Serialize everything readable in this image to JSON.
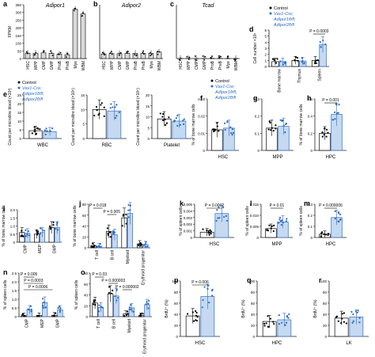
{
  "colors": {
    "control": "#9a9a9a",
    "mutant": "#2b6cc4",
    "mutant_fill": "#c5d9f1",
    "axis": "#222222"
  },
  "legend": {
    "control": "Control",
    "mutant_l1": "Vav1-Cre;",
    "mutant_l2": "Adipor1fl/fl;",
    "mutant_l3": "Adipor2fl/fl"
  },
  "panels": [
    {
      "id": "a",
      "letter": "a",
      "title": "Adipor1",
      "ylabel": "FPKM",
      "yticks": [
        "0",
        "50",
        "100",
        "150",
        "200",
        "250",
        "300",
        "350"
      ],
      "cats": [
        "HSC",
        "MPP",
        "CMP",
        "GMP",
        "ProB",
        "PreB",
        "Mye",
        "WBM"
      ]
    },
    {
      "id": "b",
      "letter": "b",
      "title": "Adipor2",
      "ylabel": "",
      "yticks": [],
      "cats": [
        "HSC",
        "MPP",
        "CMP",
        "GMP",
        "ProB",
        "PreB",
        "Mye",
        "WBM"
      ]
    },
    {
      "id": "c",
      "letter": "c",
      "title": "Tcad",
      "ylabel": "",
      "yticks": [],
      "cats": [
        "HSC",
        "MPP",
        "CMP",
        "GMP",
        "ProB",
        "PreB",
        "Mye",
        "WBM"
      ]
    },
    {
      "id": "d",
      "letter": "d",
      "title": "",
      "ylabel": "Cell number ×10⁸",
      "yticks": [
        "0",
        "1",
        "2",
        "3",
        "4",
        "5",
        "6"
      ],
      "cats": [
        "Bone marrow",
        "Thymus",
        "Spleen"
      ],
      "pval": "P = 0.0003"
    },
    {
      "id": "e1",
      "letter": "e",
      "title": "",
      "ylabel": "Count per microlitre blood (×10³)",
      "yticks": [
        "0",
        "5",
        "10",
        "15",
        "20",
        "25"
      ],
      "cats": [
        "WBC"
      ]
    },
    {
      "id": "e2",
      "letter": "",
      "title": "",
      "ylabel": "Count per microlitre blood (×10⁶)",
      "yticks": [
        "0",
        "5",
        "10",
        "15"
      ],
      "cats": [
        "RBC"
      ]
    },
    {
      "id": "e3",
      "letter": "",
      "title": "",
      "ylabel": "Count per microlitre blood (×10⁵)",
      "yticks": [
        "0",
        "5",
        "10",
        "15",
        "20"
      ],
      "cats": [
        "Platelet"
      ]
    },
    {
      "id": "f",
      "letter": "f",
      "title": "",
      "ylabel": "% of bone marrow cells",
      "yticks": [
        "0",
        "0.01",
        "0.02",
        "0.03"
      ],
      "cats": [
        "HSC"
      ]
    },
    {
      "id": "g",
      "letter": "g",
      "title": "",
      "ylabel": "",
      "yticks": [
        "0",
        "0.1",
        "0.2",
        "0.3"
      ],
      "cats": [
        "MPP"
      ]
    },
    {
      "id": "h",
      "letter": "h",
      "title": "",
      "ylabel": "% of bone marrow cells",
      "yticks": [
        "0",
        "0.2",
        "0.4",
        "0.6"
      ],
      "cats": [
        "HPC"
      ],
      "pval": "P = 0.001"
    },
    {
      "id": "i",
      "letter": "i",
      "title": "",
      "ylabel": "% of bone marrow cells",
      "yticks": [
        "0",
        "0.5",
        "1.0",
        "1.5",
        "2.0"
      ],
      "cats": [
        "CMP",
        "MEP",
        "GMP"
      ]
    },
    {
      "id": "j",
      "letter": "j",
      "title": "",
      "ylabel": "% of bone marrow cells",
      "yticks": [
        "0",
        "20",
        "40",
        "60",
        "80"
      ],
      "cats": [
        "T cell",
        "B cell",
        "Myeloid",
        "Erythroid progenitor"
      ],
      "pval": "P = 0.018",
      "pval2": "P = 0.005"
    },
    {
      "id": "k",
      "letter": "k",
      "title": "",
      "ylabel": "% of spleen cells",
      "yticks": [
        "0",
        "0.001",
        "0.002",
        "0.003",
        "0.004",
        "0.005"
      ],
      "cats": [
        "HSC"
      ],
      "pval": "P = 0.0002"
    },
    {
      "id": "l",
      "letter": "l",
      "title": "",
      "ylabel": "% of spleen cells",
      "yticks": [
        "0",
        "0.005",
        "0.010",
        "0.015"
      ],
      "cats": [
        "MPP"
      ],
      "pval": "P = 0.01"
    },
    {
      "id": "m",
      "letter": "m",
      "title": "",
      "ylabel": "% of spleen cells",
      "yticks": [
        "0",
        "0.1",
        "0.2",
        "0.3"
      ],
      "cats": [
        "HPC"
      ],
      "pval": "P = 0.000006"
    },
    {
      "id": "n",
      "letter": "n",
      "title": "",
      "ylabel": "% of spleen cells",
      "yticks": [
        "0",
        "0.5",
        "1.0",
        "1.5",
        "2.0",
        "2.5"
      ],
      "cats": [
        "CMP",
        "MEP",
        "GMP"
      ],
      "pval": "P = 0.005",
      "pval2": "P = 0.0003",
      "pval3": "P = 0.0006"
    },
    {
      "id": "o",
      "letter": "o",
      "title": "",
      "ylabel": "% of spleen cells",
      "yticks": [
        "0",
        "20",
        "40",
        "60",
        "80"
      ],
      "cats": [
        "T cell",
        "B cell",
        "Myeloid",
        "Erythroid progenitor"
      ],
      "pval": "P = 0.03",
      "pval2": "P = 0.000003",
      "pval3": "P = 0.000002"
    },
    {
      "id": "p",
      "letter": "p",
      "title": "",
      "ylabel": "BrdU⁺ (%)",
      "yticks": [
        "0",
        "20",
        "40",
        "60",
        "80",
        "100"
      ],
      "cats": [
        "HSC"
      ],
      "pval": "P = 0.006"
    },
    {
      "id": "q",
      "letter": "q",
      "title": "",
      "ylabel": "BrdU⁺ (%)",
      "yticks": [
        "0",
        "20",
        "40",
        "60",
        "80",
        "100"
      ],
      "cats": [
        "HPC"
      ]
    },
    {
      "id": "r",
      "letter": "r",
      "title": "",
      "ylabel": "BrdU⁺ (%)",
      "yticks": [
        "0",
        "20",
        "40",
        "60",
        "80",
        "100"
      ],
      "cats": [
        "LK"
      ]
    }
  ],
  "chart_data": [
    {
      "type": "bar",
      "panel": "a",
      "categories": [
        "HSC",
        "MPP",
        "CMP",
        "GMP",
        "ProB",
        "PreB",
        "Mye",
        "WBM"
      ],
      "values": [
        35,
        35,
        37,
        35,
        28,
        25,
        320,
        290
      ],
      "ylim": [
        0,
        350
      ]
    },
    {
      "type": "bar",
      "panel": "b",
      "categories": [
        "HSC",
        "MPP",
        "CMP",
        "GMP",
        "ProB",
        "PreB",
        "Mye",
        "WBM"
      ],
      "values": [
        30,
        33,
        32,
        34,
        34,
        34,
        34,
        42
      ],
      "ylim": [
        0,
        350
      ]
    },
    {
      "type": "bar",
      "panel": "c",
      "categories": [
        "HSC",
        "MPP",
        "CMP",
        "GMP",
        "ProB",
        "PreB",
        "Mye",
        "WBM"
      ],
      "values": [
        1,
        1,
        1,
        1,
        1,
        1,
        1,
        1
      ],
      "ylim": [
        0,
        350
      ]
    },
    {
      "type": "bar",
      "panel": "d",
      "categories": [
        "Bone marrow",
        "Thymus",
        "Spleen"
      ],
      "series": [
        {
          "name": "Control",
          "values": [
            0.8,
            1.0,
            1.0
          ]
        },
        {
          "name": "Mutant",
          "values": [
            0.8,
            0.9,
            3.6
          ]
        }
      ],
      "ylim": [
        0,
        6
      ]
    },
    {
      "type": "bar",
      "panel": "e1",
      "categories": [
        "WBC"
      ],
      "series": [
        {
          "name": "Control",
          "values": [
            4.5
          ]
        },
        {
          "name": "Mutant",
          "values": [
            4.0
          ]
        }
      ],
      "ylim": [
        0,
        25
      ]
    },
    {
      "type": "bar",
      "panel": "e2",
      "categories": [
        "RBC"
      ],
      "series": [
        {
          "name": "Control",
          "values": [
            10
          ]
        },
        {
          "name": "Mutant",
          "values": [
            9.5
          ]
        }
      ],
      "ylim": [
        0,
        15
      ]
    },
    {
      "type": "bar",
      "panel": "e3",
      "categories": [
        "Platelet"
      ],
      "series": [
        {
          "name": "Control",
          "values": [
            9
          ]
        },
        {
          "name": "Mutant",
          "values": [
            8
          ]
        }
      ],
      "ylim": [
        0,
        20
      ]
    },
    {
      "type": "bar",
      "panel": "f",
      "categories": [
        "HSC"
      ],
      "series": [
        {
          "name": "Control",
          "values": [
            0.012
          ]
        },
        {
          "name": "Mutant",
          "values": [
            0.013
          ]
        }
      ],
      "ylim": [
        0,
        0.03
      ]
    },
    {
      "type": "bar",
      "panel": "g",
      "categories": [
        "MPP"
      ],
      "series": [
        {
          "name": "Control",
          "values": [
            0.13
          ]
        },
        {
          "name": "Mutant",
          "values": [
            0.14
          ]
        }
      ],
      "ylim": [
        0,
        0.3
      ]
    },
    {
      "type": "bar",
      "panel": "h",
      "categories": [
        "HPC"
      ],
      "series": [
        {
          "name": "Control",
          "values": [
            0.2
          ]
        },
        {
          "name": "Mutant",
          "values": [
            0.42
          ]
        }
      ],
      "ylim": [
        0,
        0.6
      ]
    },
    {
      "type": "bar",
      "panel": "i",
      "categories": [
        "CMP",
        "MEP",
        "GMP"
      ],
      "series": [
        {
          "name": "Control",
          "values": [
            0.6,
            0.5,
            0.9
          ]
        },
        {
          "name": "Mutant",
          "values": [
            0.55,
            0.6,
            0.9
          ]
        }
      ],
      "ylim": [
        0,
        2.0
      ]
    },
    {
      "type": "bar",
      "panel": "j",
      "categories": [
        "T cell",
        "B cell",
        "Myeloid",
        "Erythroid progenitor"
      ],
      "series": [
        {
          "name": "Control",
          "values": [
            4,
            30,
            55,
            7
          ]
        },
        {
          "name": "Mutant",
          "values": [
            3,
            24,
            63,
            6
          ]
        }
      ],
      "ylim": [
        0,
        80
      ]
    },
    {
      "type": "bar",
      "panel": "k",
      "categories": [
        "HSC"
      ],
      "series": [
        {
          "name": "Control",
          "values": [
            0.0008
          ]
        },
        {
          "name": "Mutant",
          "values": [
            0.0036
          ]
        }
      ],
      "ylim": [
        0,
        0.005
      ]
    },
    {
      "type": "bar",
      "panel": "l",
      "categories": [
        "MPP"
      ],
      "series": [
        {
          "name": "Control",
          "values": [
            0.004
          ]
        },
        {
          "name": "Mutant",
          "values": [
            0.007
          ]
        }
      ],
      "ylim": [
        0,
        0.015
      ]
    },
    {
      "type": "bar",
      "panel": "m",
      "categories": [
        "HPC"
      ],
      "series": [
        {
          "name": "Control",
          "values": [
            0.03
          ]
        },
        {
          "name": "Mutant",
          "values": [
            0.18
          ]
        }
      ],
      "ylim": [
        0,
        0.3
      ]
    },
    {
      "type": "bar",
      "panel": "n",
      "categories": [
        "CMP",
        "MEP",
        "GMP"
      ],
      "series": [
        {
          "name": "Control",
          "values": [
            0.05,
            0.06,
            0.08
          ]
        },
        {
          "name": "Mutant",
          "values": [
            0.4,
            0.8,
            0.4
          ]
        }
      ],
      "ylim": [
        0,
        2.5
      ]
    },
    {
      "type": "bar",
      "panel": "o",
      "categories": [
        "T cell",
        "B cell",
        "Myeloid",
        "Erythroid progenitor"
      ],
      "series": [
        {
          "name": "Control",
          "values": [
            25,
            42,
            5,
            2
          ]
        },
        {
          "name": "Mutant",
          "values": [
            17,
            38,
            16,
            22
          ]
        }
      ],
      "ylim": [
        0,
        80
      ]
    },
    {
      "type": "bar",
      "panel": "p",
      "categories": [
        "HSC"
      ],
      "series": [
        {
          "name": "Control",
          "values": [
            37
          ]
        },
        {
          "name": "Mutant",
          "values": [
            72
          ]
        }
      ],
      "ylim": [
        0,
        100
      ]
    },
    {
      "type": "bar",
      "panel": "q",
      "categories": [
        "HPC"
      ],
      "series": [
        {
          "name": "Control",
          "values": [
            27
          ]
        },
        {
          "name": "Mutant",
          "values": [
            30
          ]
        }
      ],
      "ylim": [
        0,
        100
      ]
    },
    {
      "type": "bar",
      "panel": "r",
      "categories": [
        "LK"
      ],
      "series": [
        {
          "name": "Control",
          "values": [
            33
          ]
        },
        {
          "name": "Mutant",
          "values": [
            35
          ]
        }
      ],
      "ylim": [
        0,
        100
      ]
    }
  ]
}
